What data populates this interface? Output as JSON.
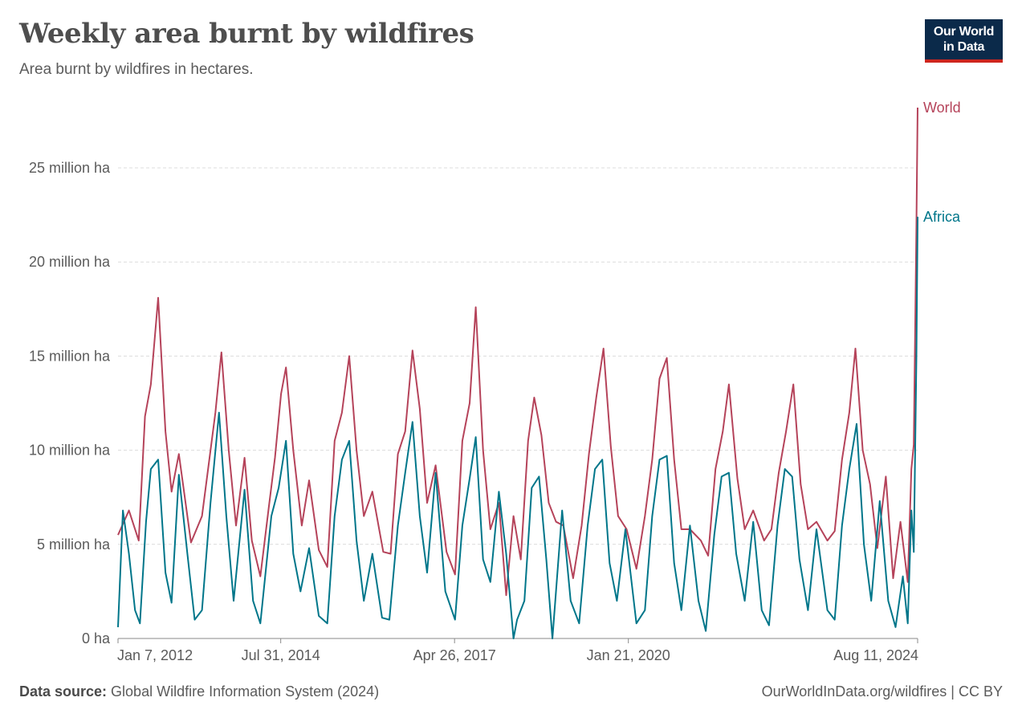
{
  "header": {
    "title": "Weekly area burnt by wildfires",
    "subtitle": "Area burnt by wildfires in hectares.",
    "logo_line1": "Our World",
    "logo_line2": "in Data"
  },
  "footer": {
    "source_label": "Data source:",
    "source_text": " Global Wildfire Information System (2024)",
    "credit": "OurWorldInData.org/wildfires | CC BY"
  },
  "colors": {
    "world": "#b5435a",
    "africa": "#00768a",
    "grid": "#dcdcdc",
    "axis": "#8a8a8a",
    "text": "#5b5b5b"
  },
  "chart_data": {
    "type": "line",
    "title": "Weekly area burnt by wildfires",
    "subtitle": "Area burnt by wildfires in hectares.",
    "x_type": "date",
    "x_range": [
      "2012-01-07",
      "2024-08-11"
    ],
    "ylim": [
      0,
      28200000
    ],
    "y_ticks": [
      {
        "value": 0,
        "label": "0 ha"
      },
      {
        "value": 5000000,
        "label": "5 million ha"
      },
      {
        "value": 10000000,
        "label": "10 million ha"
      },
      {
        "value": 15000000,
        "label": "15 million ha"
      },
      {
        "value": 20000000,
        "label": "20 million ha"
      },
      {
        "value": 25000000,
        "label": "25 million ha"
      }
    ],
    "x_ticks": [
      {
        "date": "2012-01-07",
        "label": "Jan 7, 2012"
      },
      {
        "date": "2014-07-31",
        "label": "Jul 31, 2014"
      },
      {
        "date": "2017-04-26",
        "label": "Apr 26, 2017"
      },
      {
        "date": "2020-01-21",
        "label": "Jan 21, 2020"
      },
      {
        "date": "2024-08-11",
        "label": "Aug 11, 2024"
      }
    ],
    "grid": true,
    "legend": "line-end labels",
    "series": [
      {
        "name": "World",
        "points": [
          [
            "2012-01-07",
            5500000
          ],
          [
            "2012-03-10",
            6800000
          ],
          [
            "2012-05-05",
            5200000
          ],
          [
            "2012-06-10",
            11800000
          ],
          [
            "2012-07-14",
            13500000
          ],
          [
            "2012-08-25",
            18100000
          ],
          [
            "2012-10-06",
            11000000
          ],
          [
            "2012-11-10",
            7800000
          ],
          [
            "2012-12-22",
            9800000
          ],
          [
            "2013-03-02",
            5100000
          ],
          [
            "2013-05-04",
            6500000
          ],
          [
            "2013-06-08",
            9000000
          ],
          [
            "2013-07-20",
            12000000
          ],
          [
            "2013-08-24",
            15200000
          ],
          [
            "2013-10-05",
            10000000
          ],
          [
            "2013-11-16",
            6000000
          ],
          [
            "2014-01-04",
            9600000
          ],
          [
            "2014-02-15",
            5200000
          ],
          [
            "2014-04-05",
            3300000
          ],
          [
            "2014-05-24",
            7000000
          ],
          [
            "2014-06-28",
            9600000
          ],
          [
            "2014-08-02",
            13000000
          ],
          [
            "2014-08-30",
            14400000
          ],
          [
            "2014-10-11",
            10000000
          ],
          [
            "2014-11-29",
            6000000
          ],
          [
            "2015-01-10",
            8400000
          ],
          [
            "2015-03-07",
            4700000
          ],
          [
            "2015-04-25",
            3800000
          ],
          [
            "2015-06-06",
            10500000
          ],
          [
            "2015-07-18",
            12000000
          ],
          [
            "2015-08-29",
            15000000
          ],
          [
            "2015-10-10",
            10000000
          ],
          [
            "2015-11-21",
            6500000
          ],
          [
            "2016-01-09",
            7800000
          ],
          [
            "2016-03-12",
            4600000
          ],
          [
            "2016-04-23",
            4500000
          ],
          [
            "2016-06-04",
            9800000
          ],
          [
            "2016-07-16",
            11000000
          ],
          [
            "2016-08-27",
            15300000
          ],
          [
            "2016-10-08",
            12200000
          ],
          [
            "2016-11-19",
            7200000
          ],
          [
            "2017-01-07",
            9200000
          ],
          [
            "2017-03-11",
            4600000
          ],
          [
            "2017-04-29",
            3400000
          ],
          [
            "2017-06-10",
            10500000
          ],
          [
            "2017-07-22",
            12500000
          ],
          [
            "2017-08-26",
            17600000
          ],
          [
            "2017-10-07",
            10000000
          ],
          [
            "2017-11-18",
            5800000
          ],
          [
            "2018-01-06",
            7200000
          ],
          [
            "2018-02-17",
            2300000
          ],
          [
            "2018-03-31",
            6500000
          ],
          [
            "2018-05-12",
            4200000
          ],
          [
            "2018-06-23",
            10500000
          ],
          [
            "2018-07-28",
            12800000
          ],
          [
            "2018-09-08",
            10800000
          ],
          [
            "2018-10-20",
            7200000
          ],
          [
            "2018-12-01",
            6200000
          ],
          [
            "2019-01-12",
            6000000
          ],
          [
            "2019-03-09",
            3200000
          ],
          [
            "2019-04-27",
            6000000
          ],
          [
            "2019-06-08",
            9800000
          ],
          [
            "2019-07-20",
            12800000
          ],
          [
            "2019-08-31",
            15400000
          ],
          [
            "2019-10-12",
            10200000
          ],
          [
            "2019-11-23",
            6500000
          ],
          [
            "2020-01-11",
            5800000
          ],
          [
            "2020-03-07",
            3700000
          ],
          [
            "2020-04-25",
            6500000
          ],
          [
            "2020-06-06",
            9500000
          ],
          [
            "2020-07-18",
            13800000
          ],
          [
            "2020-08-29",
            14900000
          ],
          [
            "2020-10-10",
            9500000
          ],
          [
            "2020-11-21",
            5800000
          ],
          [
            "2021-01-09",
            5800000
          ],
          [
            "2021-03-13",
            5200000
          ],
          [
            "2021-04-24",
            4400000
          ],
          [
            "2021-06-05",
            9000000
          ],
          [
            "2021-07-17",
            11000000
          ],
          [
            "2021-08-21",
            13500000
          ],
          [
            "2021-10-09",
            8500000
          ],
          [
            "2021-11-20",
            5800000
          ],
          [
            "2022-01-08",
            6800000
          ],
          [
            "2022-03-12",
            5200000
          ],
          [
            "2022-04-23",
            5800000
          ],
          [
            "2022-06-04",
            8800000
          ],
          [
            "2022-07-16",
            11000000
          ],
          [
            "2022-08-27",
            13500000
          ],
          [
            "2022-10-08",
            8200000
          ],
          [
            "2022-11-19",
            5800000
          ],
          [
            "2023-01-07",
            6200000
          ],
          [
            "2023-03-11",
            5200000
          ],
          [
            "2023-04-22",
            5700000
          ],
          [
            "2023-06-03",
            9500000
          ],
          [
            "2023-07-15",
            12000000
          ],
          [
            "2023-08-19",
            15400000
          ],
          [
            "2023-09-30",
            10000000
          ],
          [
            "2023-11-11",
            8200000
          ],
          [
            "2023-12-23",
            4800000
          ],
          [
            "2024-02-10",
            8600000
          ],
          [
            "2024-03-23",
            3200000
          ],
          [
            "2024-05-04",
            6200000
          ],
          [
            "2024-06-15",
            3000000
          ],
          [
            "2024-07-06",
            9000000
          ],
          [
            "2024-07-20",
            10300000
          ],
          [
            "2024-08-04",
            22000000
          ],
          [
            "2024-08-11",
            28200000
          ]
        ]
      },
      {
        "name": "Africa",
        "points": [
          [
            "2012-01-07",
            600000
          ],
          [
            "2012-02-04",
            6800000
          ],
          [
            "2012-03-10",
            4500000
          ],
          [
            "2012-04-14",
            1500000
          ],
          [
            "2012-05-12",
            800000
          ],
          [
            "2012-06-16",
            6200000
          ],
          [
            "2012-07-14",
            9000000
          ],
          [
            "2012-08-25",
            9500000
          ],
          [
            "2012-10-06",
            3500000
          ],
          [
            "2012-11-10",
            1900000
          ],
          [
            "2012-12-22",
            8700000
          ],
          [
            "2013-02-09",
            4500000
          ],
          [
            "2013-03-23",
            1000000
          ],
          [
            "2013-05-04",
            1500000
          ],
          [
            "2013-06-22",
            7200000
          ],
          [
            "2013-08-10",
            12000000
          ],
          [
            "2013-09-21",
            6500000
          ],
          [
            "2013-11-02",
            2000000
          ],
          [
            "2014-01-04",
            7900000
          ],
          [
            "2014-02-22",
            2000000
          ],
          [
            "2014-04-05",
            800000
          ],
          [
            "2014-06-07",
            6500000
          ],
          [
            "2014-07-19",
            8000000
          ],
          [
            "2014-08-30",
            10500000
          ],
          [
            "2014-10-11",
            4500000
          ],
          [
            "2014-11-22",
            2500000
          ],
          [
            "2015-01-10",
            4800000
          ],
          [
            "2015-03-07",
            1200000
          ],
          [
            "2015-04-25",
            800000
          ],
          [
            "2015-06-06",
            6500000
          ],
          [
            "2015-07-18",
            9500000
          ],
          [
            "2015-08-29",
            10500000
          ],
          [
            "2015-10-10",
            5200000
          ],
          [
            "2015-11-21",
            2000000
          ],
          [
            "2016-01-09",
            4500000
          ],
          [
            "2016-03-05",
            1100000
          ],
          [
            "2016-04-16",
            1000000
          ],
          [
            "2016-06-04",
            6000000
          ],
          [
            "2016-07-16",
            8800000
          ],
          [
            "2016-08-27",
            11500000
          ],
          [
            "2016-10-08",
            6500000
          ],
          [
            "2016-11-19",
            3500000
          ],
          [
            "2017-01-07",
            8800000
          ],
          [
            "2017-03-04",
            2500000
          ],
          [
            "2017-04-29",
            1000000
          ],
          [
            "2017-06-10",
            6000000
          ],
          [
            "2017-07-22",
            8500000
          ],
          [
            "2017-08-26",
            10700000
          ],
          [
            "2017-10-07",
            4200000
          ],
          [
            "2017-11-18",
            3000000
          ],
          [
            "2018-01-06",
            7800000
          ],
          [
            "2018-02-17",
            4500000
          ],
          [
            "2018-03-31",
            0
          ],
          [
            "2018-04-21",
            1000000
          ],
          [
            "2018-06-02",
            2000000
          ],
          [
            "2018-07-14",
            8000000
          ],
          [
            "2018-08-25",
            8600000
          ],
          [
            "2018-10-06",
            4200000
          ],
          [
            "2018-11-10",
            0
          ],
          [
            "2019-01-05",
            6800000
          ],
          [
            "2019-02-23",
            2000000
          ],
          [
            "2019-04-13",
            800000
          ],
          [
            "2019-06-01",
            6000000
          ],
          [
            "2019-07-13",
            9000000
          ],
          [
            "2019-08-24",
            9500000
          ],
          [
            "2019-10-05",
            4000000
          ],
          [
            "2019-11-16",
            2000000
          ],
          [
            "2020-01-04",
            5800000
          ],
          [
            "2020-03-07",
            800000
          ],
          [
            "2020-04-25",
            1500000
          ],
          [
            "2020-06-06",
            6500000
          ],
          [
            "2020-07-18",
            9500000
          ],
          [
            "2020-08-29",
            9700000
          ],
          [
            "2020-10-10",
            4000000
          ],
          [
            "2020-11-21",
            1500000
          ],
          [
            "2021-01-09",
            6000000
          ],
          [
            "2021-02-27",
            2000000
          ],
          [
            "2021-04-10",
            400000
          ],
          [
            "2021-05-29",
            5500000
          ],
          [
            "2021-07-10",
            8600000
          ],
          [
            "2021-08-21",
            8800000
          ],
          [
            "2021-10-02",
            4500000
          ],
          [
            "2021-11-20",
            2000000
          ],
          [
            "2022-01-08",
            6200000
          ],
          [
            "2022-02-26",
            1500000
          ],
          [
            "2022-04-09",
            700000
          ],
          [
            "2022-05-28",
            6000000
          ],
          [
            "2022-07-09",
            9000000
          ],
          [
            "2022-08-20",
            8600000
          ],
          [
            "2022-10-01",
            4200000
          ],
          [
            "2022-11-19",
            1500000
          ],
          [
            "2023-01-07",
            5800000
          ],
          [
            "2023-03-11",
            1500000
          ],
          [
            "2023-04-22",
            1000000
          ],
          [
            "2023-06-03",
            6000000
          ],
          [
            "2023-07-15",
            9000000
          ],
          [
            "2023-08-26",
            11400000
          ],
          [
            "2023-10-07",
            5000000
          ],
          [
            "2023-11-18",
            2000000
          ],
          [
            "2024-01-06",
            7300000
          ],
          [
            "2024-02-24",
            2000000
          ],
          [
            "2024-04-06",
            600000
          ],
          [
            "2024-05-18",
            3300000
          ],
          [
            "2024-06-15",
            800000
          ],
          [
            "2024-07-06",
            6800000
          ],
          [
            "2024-07-20",
            4600000
          ],
          [
            "2024-08-04",
            15000000
          ],
          [
            "2024-08-11",
            22400000
          ]
        ]
      }
    ]
  }
}
